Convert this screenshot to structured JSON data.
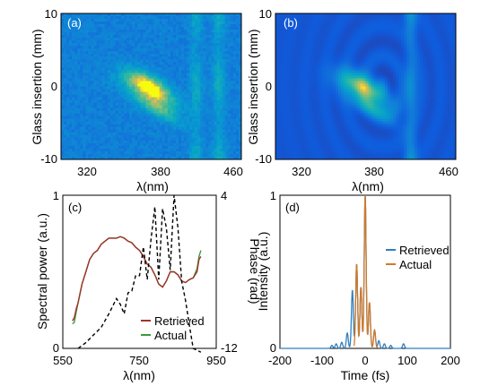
{
  "caption_fragment": "",
  "chart_data": [
    {
      "id": "a",
      "type": "heatmap",
      "panel_label": "(a)",
      "xlabel": "λ(nm)",
      "ylabel": "Glass insertion (mm)",
      "xlim": [
        300,
        460
      ],
      "ylim": [
        -10,
        10
      ],
      "xticks": [
        "320",
        "380",
        "460"
      ],
      "yticks": [
        "10",
        "0",
        "-10"
      ],
      "colormap": "parula",
      "noisy_background": true,
      "features": [
        {
          "name": "tilted band",
          "x_range_nm": [
            355,
            405
          ],
          "y_range_mm": [
            -6,
            3
          ],
          "peak": 1.0
        },
        {
          "name": "vertical line",
          "x_nm": 420,
          "y_range_mm": [
            -10,
            10
          ],
          "peak": 0.45
        },
        {
          "name": "vertical line",
          "x_nm": 440,
          "y_range_mm": [
            -10,
            10
          ],
          "peak": 0.5
        }
      ]
    },
    {
      "id": "b",
      "type": "heatmap",
      "panel_label": "(b)",
      "xlabel": "λ(nm)",
      "ylabel": "Glass insertion (mm)",
      "xlim": [
        300,
        460
      ],
      "ylim": [
        -10,
        10
      ],
      "xticks": [
        "320",
        "380",
        "460"
      ],
      "yticks": [
        "10",
        "0",
        "-10"
      ],
      "colormap": "parula",
      "noisy_background": false,
      "features": [
        {
          "name": "tilted band",
          "x_range_nm": [
            355,
            405
          ],
          "y_range_mm": [
            -6,
            3
          ],
          "peak": 1.0
        },
        {
          "name": "vertical line",
          "x_nm": 420,
          "y_range_mm": [
            -10,
            10
          ],
          "peak": 0.6
        }
      ]
    },
    {
      "id": "c",
      "type": "line",
      "panel_label": "(c)",
      "xlabel": "λ(nm)",
      "ylabel": "Spectral power (a.u.)",
      "y2label": "Phase (rad)",
      "xlim": [
        550,
        950
      ],
      "ylim": [
        0,
        1
      ],
      "y2lim": [
        -12,
        4
      ],
      "xticks": [
        "550",
        "750",
        "950"
      ],
      "yticks": [
        "1",
        "0"
      ],
      "y2ticks": [
        "4",
        "-12"
      ],
      "legend_position": "bottom-right",
      "series": [
        {
          "name": "Retrieved",
          "color": "#a0332b",
          "axis": "left",
          "x": [
            575,
            580,
            585,
            590,
            600,
            610,
            620,
            630,
            640,
            650,
            660,
            670,
            680,
            690,
            700,
            710,
            720,
            730,
            740,
            750,
            760,
            770,
            780,
            790,
            800,
            810,
            820,
            830,
            840,
            850,
            860,
            870,
            880,
            890,
            900,
            905,
            910
          ],
          "y": [
            0.18,
            0.2,
            0.26,
            0.3,
            0.42,
            0.5,
            0.58,
            0.62,
            0.64,
            0.68,
            0.7,
            0.72,
            0.72,
            0.72,
            0.73,
            0.72,
            0.7,
            0.69,
            0.66,
            0.64,
            0.6,
            0.55,
            0.53,
            0.48,
            0.42,
            0.4,
            0.44,
            0.5,
            0.5,
            0.48,
            0.44,
            0.43,
            0.45,
            0.46,
            0.5,
            0.58,
            0.6
          ]
        },
        {
          "name": "Actual",
          "color": "#3f9a3a",
          "axis": "left",
          "x": [
            575,
            580,
            585,
            590,
            600,
            610,
            620,
            630,
            640,
            650,
            660,
            670,
            680,
            690,
            700,
            710,
            720,
            730,
            740,
            750,
            760,
            770,
            780,
            790,
            800,
            810,
            820,
            830,
            840,
            850,
            860,
            870,
            880,
            890,
            900,
            905,
            910
          ],
          "y": [
            0.16,
            0.17,
            0.24,
            0.3,
            0.42,
            0.5,
            0.58,
            0.62,
            0.64,
            0.68,
            0.7,
            0.72,
            0.72,
            0.72,
            0.73,
            0.72,
            0.7,
            0.69,
            0.66,
            0.64,
            0.6,
            0.55,
            0.53,
            0.48,
            0.42,
            0.4,
            0.44,
            0.5,
            0.5,
            0.48,
            0.44,
            0.43,
            0.45,
            0.46,
            0.52,
            0.6,
            0.64
          ]
        },
        {
          "name": "",
          "color": "#000000",
          "axis": "right",
          "dashed": true,
          "x": [
            590,
            610,
            630,
            650,
            670,
            690,
            700,
            710,
            720,
            730,
            740,
            750,
            760,
            770,
            780,
            790,
            800,
            810,
            820,
            830,
            840,
            850,
            860,
            870,
            880,
            890,
            900,
            910
          ],
          "y": [
            -12,
            -11.4,
            -10.6,
            -9.8,
            -8.4,
            -6.8,
            -7.4,
            -8.4,
            -6.2,
            -6.0,
            -4.4,
            -4.4,
            -1.4,
            -4.8,
            -0.6,
            2.8,
            -4.8,
            2.6,
            0.6,
            -3.8,
            4.0,
            0.6,
            -5.0,
            -7.0,
            -9.6,
            -12.0,
            -12.2,
            -12.4
          ]
        }
      ]
    },
    {
      "id": "d",
      "type": "line",
      "panel_label": "(d)",
      "xlabel": "Time (fs)",
      "ylabel": "Intensity (a.u.)",
      "xlim": [
        -200,
        200
      ],
      "ylim": [
        0,
        1
      ],
      "xticks": [
        "-200",
        "-100",
        "0",
        "100",
        "200"
      ],
      "yticks": [
        "1",
        "0"
      ],
      "legend_position": "top-right",
      "series": [
        {
          "name": "Retrieved",
          "color": "#2f7fbf",
          "pulses": [
            [
              -78,
              0.02
            ],
            [
              -68,
              0.03
            ],
            [
              -55,
              0.04
            ],
            [
              -42,
              0.1
            ],
            [
              -30,
              0.38
            ],
            [
              -20,
              0.55
            ],
            [
              -10,
              0.4
            ],
            [
              0,
              1.0
            ],
            [
              10,
              0.3
            ],
            [
              22,
              0.12
            ],
            [
              32,
              0.05
            ],
            [
              45,
              0.03
            ],
            [
              60,
              0.02
            ],
            [
              90,
              0.03
            ]
          ]
        },
        {
          "name": "Actual",
          "color": "#d07a2a",
          "pulses": [
            [
              -20,
              0.55
            ],
            [
              -10,
              0.4
            ],
            [
              0,
              1.0
            ],
            [
              10,
              0.3
            ],
            [
              22,
              0.12
            ]
          ]
        }
      ]
    }
  ]
}
